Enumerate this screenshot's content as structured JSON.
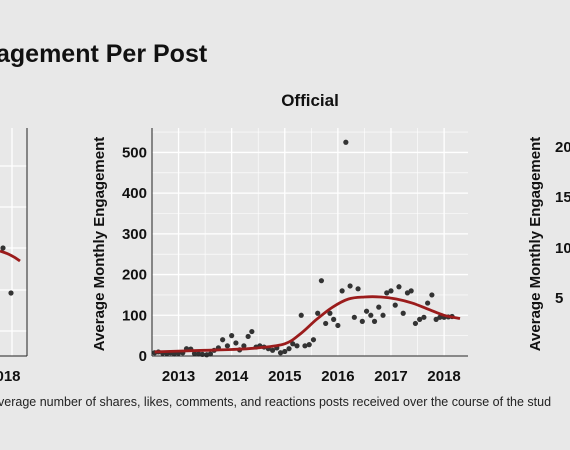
{
  "figure": {
    "title": "agement Per Post",
    "caption": "verage number of shares, likes, comments, and reactions posts received over the course of the stud"
  },
  "chart_data": [
    {
      "type": "scatter",
      "title": "",
      "xlabel": "",
      "ylabel": "",
      "xticks": [
        "018"
      ],
      "yticks": [],
      "series": [
        {
          "name": "",
          "x": [
            2018.3,
            2018.55
          ],
          "y": [
            265,
            230
          ]
        }
      ],
      "smooth": {
        "x": [
          2018.3,
          2018.6
        ],
        "y": [
          245,
          228
        ]
      },
      "note_visible": "left panel cropped at image edge"
    },
    {
      "type": "scatter",
      "title": "Official",
      "xlabel": "",
      "ylabel": "Average Monthly Engagement",
      "xlim": [
        2012.5,
        2018.45
      ],
      "ylim": [
        0,
        560
      ],
      "xticks": [
        2013,
        2014,
        2015,
        2016,
        2017,
        2018
      ],
      "xtick_labels": [
        "2013",
        "2014",
        "2015",
        "2016",
        "2017",
        "2018"
      ],
      "yticks": [
        0,
        100,
        200,
        300,
        400,
        500
      ],
      "ytick_labels": [
        "0",
        "100",
        "200",
        "300",
        "400",
        "500"
      ],
      "grid": true,
      "point_color": "#333333",
      "smooth_color": "#9b1c1c",
      "series": [
        {
          "name": "",
          "x": [
            2012.55,
            2012.62,
            2012.7,
            2012.78,
            2012.85,
            2012.92,
            2013.0,
            2013.08,
            2013.15,
            2013.23,
            2013.3,
            2013.38,
            2013.45,
            2013.53,
            2013.6,
            2013.67,
            2013.75,
            2013.83,
            2013.92,
            2014.0,
            2014.08,
            2014.15,
            2014.23,
            2014.31,
            2014.38,
            2014.46,
            2014.53,
            2014.61,
            2014.69,
            2014.77,
            2014.85,
            2014.92,
            2015.0,
            2015.08,
            2015.15,
            2015.23,
            2015.31,
            2015.38,
            2015.46,
            2015.54,
            2015.62,
            2015.69,
            2015.77,
            2015.85,
            2015.92,
            2016.0,
            2016.08,
            2016.15,
            2016.23,
            2016.31,
            2016.38,
            2016.46,
            2016.54,
            2016.62,
            2016.69,
            2016.77,
            2016.85,
            2016.92,
            2017.0,
            2017.08,
            2017.15,
            2017.23,
            2017.31,
            2017.38,
            2017.46,
            2017.54,
            2017.62,
            2017.69,
            2017.77,
            2017.85,
            2017.92,
            2018.0,
            2018.08,
            2018.15
          ],
          "y": [
            8,
            10,
            7,
            6,
            8,
            5,
            7,
            8,
            18,
            17,
            6,
            5,
            4,
            3,
            5,
            14,
            20,
            40,
            25,
            50,
            32,
            15,
            25,
            48,
            60,
            22,
            25,
            22,
            18,
            14,
            20,
            8,
            11,
            18,
            30,
            25,
            100,
            25,
            28,
            40,
            105,
            185,
            80,
            105,
            90,
            75,
            160,
            525,
            172,
            95,
            165,
            85,
            110,
            100,
            85,
            120,
            100,
            155,
            160,
            125,
            170,
            105,
            155,
            160,
            80,
            90,
            95,
            130,
            150,
            90,
            95,
            95,
            96,
            97
          ]
        }
      ],
      "smooth": {
        "x": [
          2012.55,
          2013.0,
          2013.5,
          2014.0,
          2014.5,
          2015.0,
          2015.3,
          2015.6,
          2015.9,
          2016.2,
          2016.5,
          2016.8,
          2017.1,
          2017.4,
          2017.7,
          2018.0,
          2018.3
        ],
        "y": [
          10,
          12,
          14,
          16,
          20,
          30,
          55,
          90,
          120,
          140,
          145,
          145,
          140,
          130,
          115,
          100,
          92
        ]
      }
    },
    {
      "type": "scatter",
      "title": "",
      "xlabel": "",
      "ylabel": "Average Monthly Engagement",
      "yticks": [
        5,
        10,
        15,
        20
      ],
      "ytick_labels": [
        "5",
        "10",
        "15",
        "20"
      ],
      "series": [],
      "note_visible": "right panel cropped at image edge"
    }
  ]
}
